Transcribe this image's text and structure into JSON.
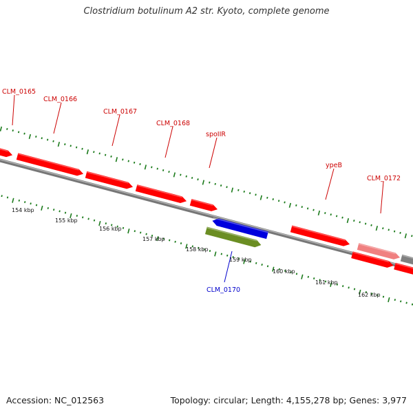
{
  "title": "Clostridium botulinum A2 str. Kyoto, complete genome",
  "accession": "Accession: NC_012563",
  "topology": "Topology: circular; Length: 4,155,278 bp; Genes: 3,977",
  "colors": {
    "gene_forward": "#ff0000",
    "gene_forward_faded": "#f08080",
    "gene_reverse": "#0000dd",
    "rna": "#6b8e23",
    "pseudo": "#808080",
    "backbone": "#888888",
    "ticks": "#1a7a1a",
    "label_forward": "#cc0000",
    "label_reverse": "#0000cc"
  },
  "scale_labels": [
    "154 kbp",
    "155 kbp",
    "156 kbp",
    "157 kbp",
    "158 kbp",
    "159 kbp",
    "160 kbp",
    "161 kbp",
    "162 kbp"
  ],
  "genes": [
    {
      "name": "",
      "strand": "+",
      "color": "gene_forward"
    },
    {
      "name": "CLM_0165",
      "strand": "+",
      "color": "gene_forward"
    },
    {
      "name": "CLM_0166",
      "strand": "+",
      "color": "gene_forward"
    },
    {
      "name": "CLM_0167",
      "strand": "+",
      "color": "gene_forward"
    },
    {
      "name": "CLM_0168",
      "strand": "+",
      "color": "gene_forward"
    },
    {
      "name": "spoIIR",
      "strand": "+",
      "color": "gene_forward"
    },
    {
      "name": "ypeB",
      "strand": "+",
      "color": "gene_forward"
    },
    {
      "name": "CLM_0172",
      "strand": "+",
      "color": "gene_forward_faded"
    },
    {
      "name": "CLM_0170",
      "strand": "-",
      "color": "gene_reverse"
    },
    {
      "name": "",
      "strand": "+",
      "color": "rna"
    },
    {
      "name": "",
      "strand": "+",
      "color": "gene_forward"
    },
    {
      "name": "",
      "strand": "+",
      "color": "gene_forward"
    },
    {
      "name": "",
      "strand": "",
      "color": "pseudo"
    }
  ]
}
